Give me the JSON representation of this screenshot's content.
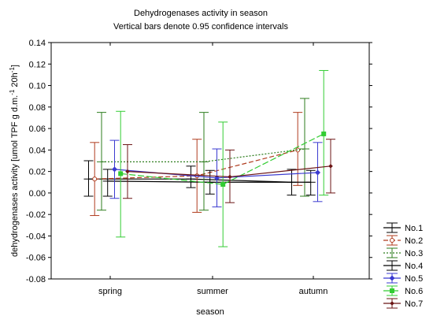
{
  "chart_data": {
    "type": "line",
    "title": "Dehydrogenases activity in season",
    "subtitle": "Vertical bars denote 0.95 confidence intervals",
    "xlabel": "season",
    "ylabel": "dehydrogenases activity [umol TPF g d.m.-1 20h-1]",
    "ylabel_parts": {
      "pre": "dehydrogenases activity [umol TPF g d.m.",
      "sup1": "-1",
      "mid": " 20h",
      "sup2": "-1",
      "post": "]"
    },
    "categories": [
      "spring",
      "summer",
      "autumn"
    ],
    "ylim": [
      -0.08,
      0.14
    ],
    "yticks": [
      -0.08,
      -0.06,
      -0.04,
      -0.02,
      0.0,
      0.02,
      0.04,
      0.06,
      0.08,
      0.1,
      0.12,
      0.14
    ],
    "ytick_labels": [
      "-0.08",
      "-0.06",
      "-0.04",
      "-0.02",
      "0.00",
      "0.02",
      "0.04",
      "0.06",
      "0.08",
      "0.10",
      "0.12",
      "0.14"
    ],
    "grid": false,
    "legend_position": "bottom-right",
    "series": [
      {
        "name": "No.1",
        "color": "#000000",
        "dash": "",
        "marker": "none",
        "offset": -0.25,
        "values": [
          0.013,
          0.013,
          0.01
        ],
        "lower": [
          -0.003,
          0.005,
          -0.002
        ],
        "upper": [
          0.03,
          0.025,
          0.022
        ]
      },
      {
        "name": "No.2",
        "color": "#b03c1e",
        "dash": "6,3",
        "marker": "circle-open",
        "offset": -0.18,
        "values": [
          0.013,
          0.016,
          0.04
        ],
        "lower": [
          -0.021,
          -0.018,
          0.007
        ],
        "upper": [
          0.047,
          0.05,
          0.075
        ]
      },
      {
        "name": "No.3",
        "color": "#2e7d1e",
        "dash": "2,2",
        "marker": "none",
        "offset": -0.1,
        "values": [
          0.029,
          0.029,
          0.041
        ],
        "lower": [
          -0.016,
          -0.016,
          -0.003
        ],
        "upper": [
          0.075,
          0.075,
          0.088
        ]
      },
      {
        "name": "No.4",
        "color": "#000000",
        "dash": "",
        "marker": "none",
        "offset": -0.03,
        "values": [
          0.011,
          0.01,
          0.01
        ],
        "lower": [
          -0.003,
          -0.001,
          -0.002
        ],
        "upper": [
          0.022,
          0.021,
          0.021
        ]
      },
      {
        "name": "No.5",
        "color": "#3a3ad0",
        "dash": "",
        "marker": "diamond",
        "offset": 0.05,
        "values": [
          0.022,
          0.014,
          0.019
        ],
        "lower": [
          -0.005,
          -0.013,
          -0.008
        ],
        "upper": [
          0.049,
          0.041,
          0.047
        ]
      },
      {
        "name": "No.6",
        "color": "#33cc33",
        "dash": "8,3",
        "marker": "square",
        "offset": 0.12,
        "values": [
          0.018,
          0.008,
          0.055
        ],
        "lower": [
          -0.041,
          -0.05,
          -0.002
        ],
        "upper": [
          0.076,
          0.066,
          0.114
        ]
      },
      {
        "name": "No.7",
        "color": "#6b1414",
        "dash": "",
        "marker": "diamond-small",
        "offset": 0.2,
        "values": [
          0.02,
          0.015,
          0.025
        ],
        "lower": [
          -0.005,
          -0.009,
          0.0
        ],
        "upper": [
          0.045,
          0.04,
          0.05
        ]
      }
    ]
  }
}
